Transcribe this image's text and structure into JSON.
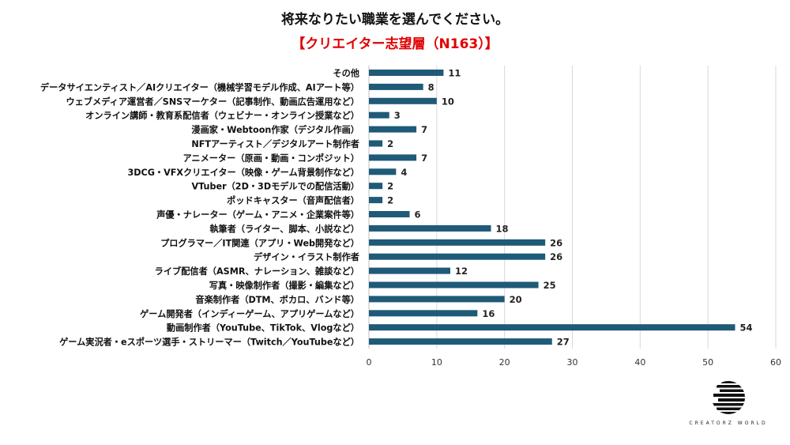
{
  "title": "将来なりたい職業を選んでください。",
  "subtitle": "【クリエイター志望層（N163）】",
  "logo_text": "CREATORZ WORLD",
  "chart_data": {
    "type": "bar",
    "orientation": "horizontal",
    "color": "#1f5a78",
    "categories": [
      "その他",
      "データサイエンティスト／AIクリエイター（機械学習モデル作成、AIアート等）",
      "ウェブメディア運営者／SNSマーケター（記事制作、動画広告運用など）",
      "オンライン講師・教育系配信者（ウェビナー・オンライン授業など）",
      "漫画家・Webtoon作家（デジタル作画）",
      "NFTアーティスト／デジタルアート制作者",
      "アニメーター（原画・動画・コンポジット）",
      "3DCG・VFXクリエイター（映像・ゲーム背景制作など）",
      "VTuber（2D・3Dモデルでの配信活動）",
      "ポッドキャスター（音声配信者）",
      "声優・ナレーター（ゲーム・アニメ・企業案件等）",
      "執筆者（ライター、脚本、小説など）",
      "プログラマー／IT関連（アプリ・Web開発など）",
      "デザイン・イラスト制作者",
      "ライブ配信者（ASMR、ナレーション、雑談など）",
      "写真・映像制作者（撮影・編集など）",
      "音楽制作者（DTM、ボカロ、バンド等）",
      "ゲーム開発者（インディーゲーム、アプリゲームなど）",
      "動画制作者（YouTube、TikTok、Vlogなど）",
      "ゲーム実況者・eスポーツ選手・ストリーマー（Twitch／YouTubeなど）"
    ],
    "values": [
      11,
      8,
      10,
      3,
      7,
      2,
      7,
      4,
      2,
      2,
      6,
      18,
      26,
      26,
      12,
      25,
      20,
      16,
      54,
      27
    ],
    "xlim": [
      0,
      60
    ],
    "xticks": [
      "0",
      "10",
      "20",
      "30",
      "40",
      "50",
      "60"
    ],
    "grid": true,
    "data_labels": true
  }
}
